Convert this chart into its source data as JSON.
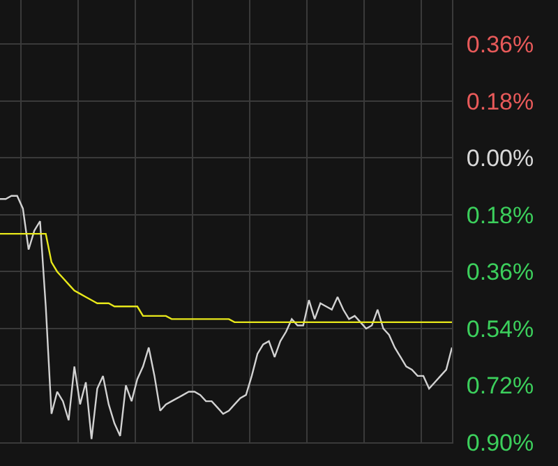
{
  "chart_data": {
    "type": "line",
    "categories": [
      null,
      null,
      null,
      null,
      null,
      null,
      null,
      null,
      null,
      null,
      null,
      null,
      null,
      null,
      null,
      null,
      null,
      null,
      null,
      null,
      null,
      null,
      null,
      null,
      null,
      null,
      null,
      null,
      null,
      null,
      null,
      null,
      null,
      null,
      null,
      null,
      null,
      null,
      null,
      null,
      null,
      null,
      null,
      null,
      null,
      null,
      null,
      null,
      null,
      null,
      null,
      null,
      null,
      null,
      null,
      null,
      null,
      null,
      null,
      null,
      null,
      null,
      null,
      null,
      null,
      null,
      null,
      null,
      null,
      null,
      null,
      null,
      null,
      null,
      null,
      null,
      null,
      null,
      null,
      null
    ],
    "series": [
      {
        "color": "#d2d2d2",
        "values": [
          -0.13,
          -0.13,
          -0.12,
          -0.12,
          -0.16,
          -0.29,
          -0.23,
          -0.2,
          -0.47,
          -0.81,
          -0.74,
          -0.77,
          -0.83,
          -0.66,
          -0.78,
          -0.71,
          -0.89,
          -0.73,
          -0.69,
          -0.78,
          -0.84,
          -0.88,
          -0.72,
          -0.77,
          -0.7,
          -0.66,
          -0.6,
          -0.69,
          -0.8,
          -0.78,
          -0.77,
          -0.76,
          -0.75,
          -0.74,
          -0.74,
          -0.75,
          -0.77,
          -0.77,
          -0.79,
          -0.81,
          -0.8,
          -0.78,
          -0.76,
          -0.75,
          -0.69,
          -0.62,
          -0.59,
          -0.58,
          -0.63,
          -0.58,
          -0.55,
          -0.51,
          -0.53,
          -0.53,
          -0.45,
          -0.51,
          -0.46,
          -0.47,
          -0.48,
          -0.44,
          -0.48,
          -0.51,
          -0.5,
          -0.52,
          -0.54,
          -0.53,
          -0.48,
          -0.54,
          -0.56,
          -0.6,
          -0.63,
          -0.66,
          -0.67,
          -0.69,
          -0.69,
          -0.73,
          -0.71,
          -0.69,
          -0.67,
          -0.6
        ]
      },
      {
        "color": "#e8e81a",
        "values": [
          -0.24,
          -0.24,
          -0.24,
          -0.24,
          -0.24,
          -0.24,
          -0.24,
          -0.24,
          -0.24,
          -0.33,
          -0.36,
          -0.38,
          -0.4,
          -0.42,
          -0.43,
          -0.44,
          -0.45,
          -0.46,
          -0.46,
          -0.46,
          -0.47,
          -0.47,
          -0.47,
          -0.47,
          -0.47,
          -0.5,
          -0.5,
          -0.5,
          -0.5,
          -0.5,
          -0.51,
          -0.51,
          -0.51,
          -0.51,
          -0.51,
          -0.51,
          -0.51,
          -0.51,
          -0.51,
          -0.51,
          -0.51,
          -0.52,
          -0.52,
          -0.52,
          -0.52,
          -0.52,
          -0.52,
          -0.52,
          -0.52,
          -0.52,
          -0.52,
          -0.52,
          -0.52,
          -0.52,
          -0.52,
          -0.52,
          -0.52,
          -0.52,
          -0.52,
          -0.52,
          -0.52,
          -0.52,
          -0.52,
          -0.52,
          -0.52,
          -0.52,
          -0.52,
          -0.52,
          -0.52,
          -0.52,
          -0.52,
          -0.52,
          -0.52,
          -0.52,
          -0.52,
          -0.52,
          -0.52,
          -0.52,
          -0.52,
          -0.52
        ]
      }
    ],
    "ylim": [
      -0.9,
      0.5
    ],
    "yticks": [
      {
        "value": 0.36,
        "label": "0.36%"
      },
      {
        "value": 0.18,
        "label": "0.18%"
      },
      {
        "value": 0,
        "label": "0.00%"
      },
      {
        "value": -0.18,
        "label": "0.18%"
      },
      {
        "value": -0.36,
        "label": "0.36%"
      },
      {
        "value": -0.54,
        "label": "0.54%"
      },
      {
        "value": -0.72,
        "label": "0.72%"
      },
      {
        "value": -0.9,
        "label": "0.90%"
      }
    ],
    "tick_labels": "y",
    "grid": true,
    "marker": "none",
    "line_style": "solid"
  }
}
